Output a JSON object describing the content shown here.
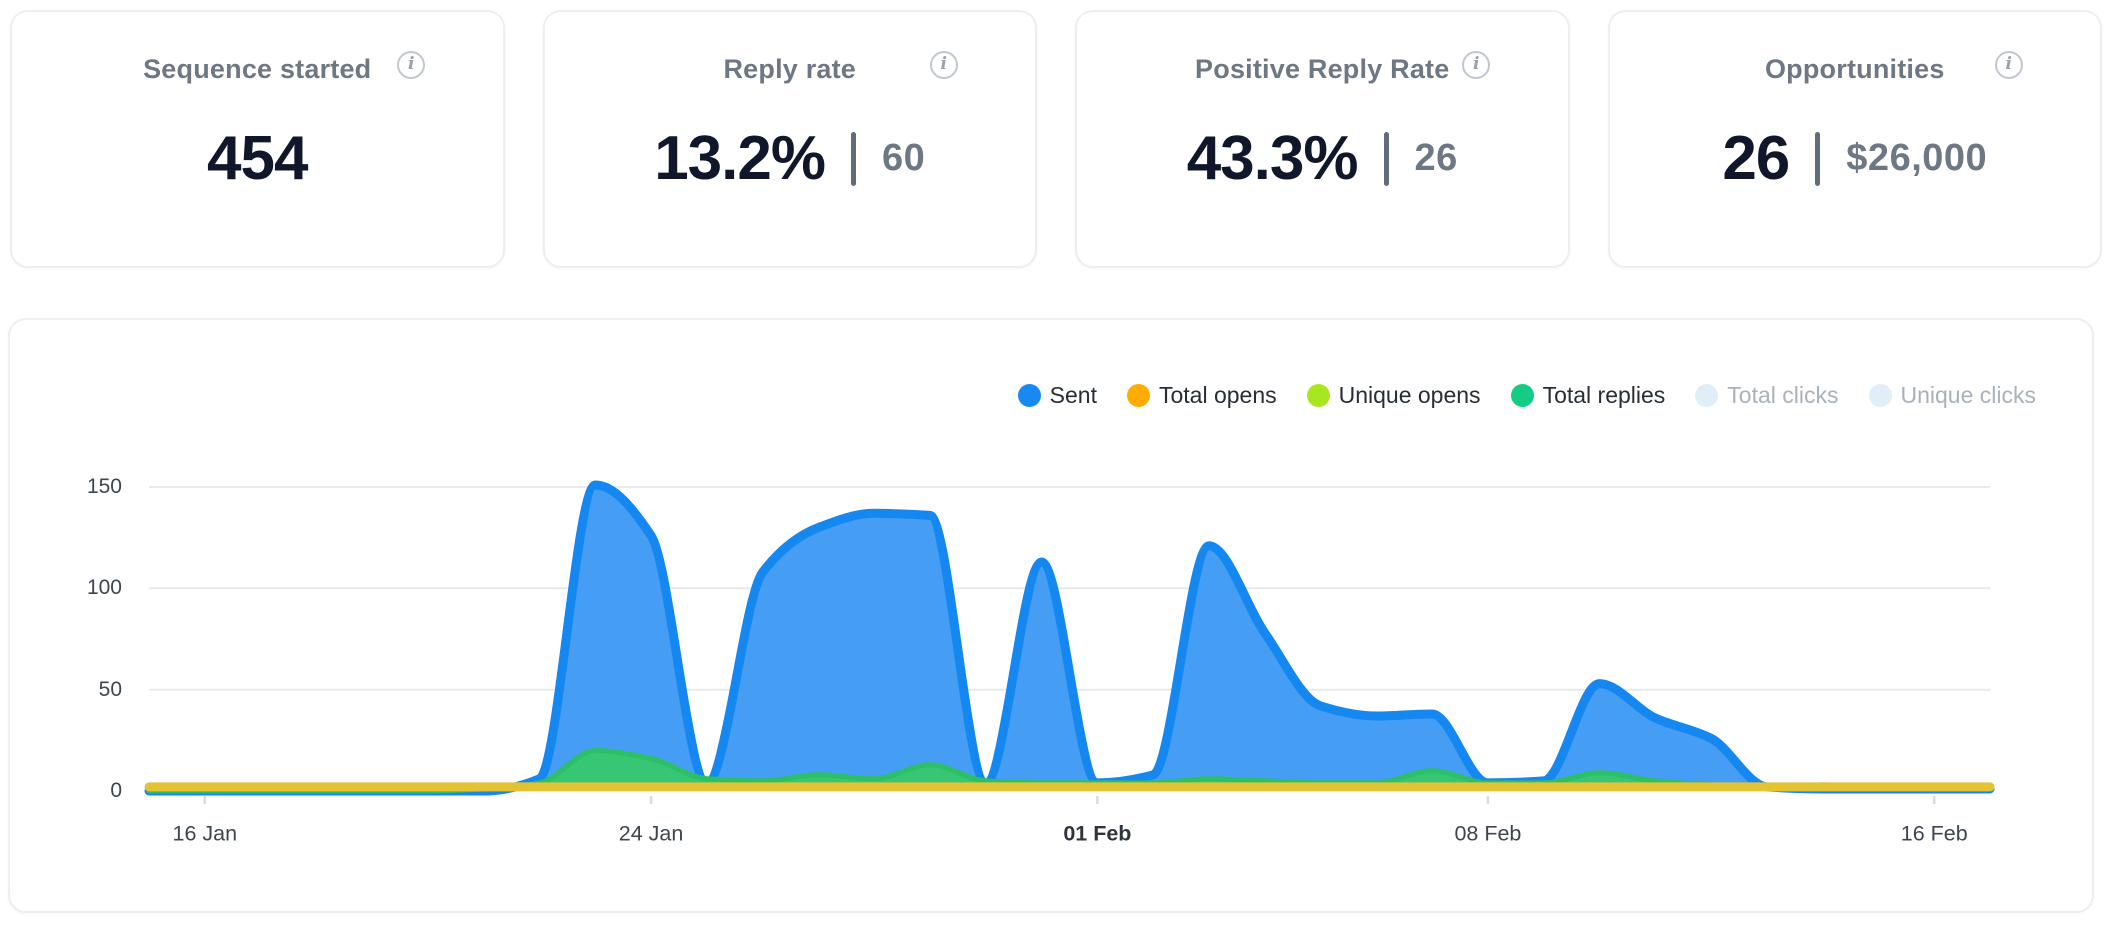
{
  "cards": [
    {
      "title": "Sequence started",
      "value": "454",
      "secondary": null
    },
    {
      "title": "Reply rate",
      "value": "13.2%",
      "secondary": "60"
    },
    {
      "title": "Positive Reply Rate",
      "value": "43.3%",
      "secondary": "26"
    },
    {
      "title": "Opportunities",
      "value": "26",
      "secondary": "$26,000"
    }
  ],
  "info_icon_glyph": "i",
  "chart_data": {
    "type": "area",
    "title": "",
    "xlabel": "",
    "ylabel": "",
    "ylim": [
      0,
      150
    ],
    "yticks": [
      0,
      50,
      100,
      150
    ],
    "grid": "horizontal",
    "legend_position": "top-right",
    "x": [
      "15 Jan",
      "16 Jan",
      "17 Jan",
      "18 Jan",
      "19 Jan",
      "20 Jan",
      "21 Jan",
      "22 Jan",
      "23 Jan",
      "24 Jan",
      "25 Jan",
      "26 Jan",
      "27 Jan",
      "28 Jan",
      "29 Jan",
      "30 Jan",
      "31 Jan",
      "01 Feb",
      "02 Feb",
      "03 Feb",
      "04 Feb",
      "05 Feb",
      "06 Feb",
      "07 Feb",
      "08 Feb",
      "09 Feb",
      "10 Feb",
      "11 Feb",
      "12 Feb",
      "13 Feb",
      "14 Feb",
      "15 Feb",
      "16 Feb",
      "17 Feb"
    ],
    "xticks": [
      {
        "label": "16 Jan",
        "index": 1,
        "bold": false
      },
      {
        "label": "24 Jan",
        "index": 9,
        "bold": false
      },
      {
        "label": "01 Feb",
        "index": 17,
        "bold": true
      },
      {
        "label": "08 Feb",
        "index": 24,
        "bold": false
      },
      {
        "label": "16 Feb",
        "index": 32,
        "bold": false
      }
    ],
    "series": [
      {
        "name": "Sent",
        "enabled": true,
        "kind": "area",
        "z": 1,
        "color": "#1789f2",
        "fill": "#459ef4",
        "line_color": "#1487f0",
        "stroke_width": 9,
        "values": [
          0,
          0,
          0,
          0,
          0,
          0,
          0,
          6,
          151,
          126,
          4,
          108,
          130,
          137,
          136,
          4,
          113,
          4,
          8,
          121,
          78,
          42,
          37,
          38,
          4,
          5,
          53,
          36,
          26,
          2,
          1,
          1,
          1,
          1
        ]
      },
      {
        "name": "Total opens",
        "enabled": true,
        "kind": "line",
        "z": 4,
        "color": "#ffab00",
        "line_color": "#e3c334",
        "stroke_width": 9,
        "values": [
          2,
          2,
          2,
          2,
          2,
          2,
          2,
          2,
          2,
          2,
          2,
          2,
          2,
          2,
          2,
          2,
          2,
          2,
          2,
          2,
          2,
          2,
          2,
          2,
          2,
          2,
          2,
          2,
          2,
          2,
          2,
          2,
          2,
          2
        ]
      },
      {
        "name": "Unique opens",
        "enabled": true,
        "kind": "line",
        "z": 3,
        "color": "#a8e620",
        "line_color": "#a8e620",
        "stroke_width": 4,
        "values": [
          1,
          1,
          1,
          1,
          1,
          1,
          1,
          1,
          1,
          1,
          1,
          1,
          1,
          1,
          1,
          1,
          1,
          1,
          1,
          1,
          1,
          1,
          1,
          1,
          1,
          1,
          1,
          1,
          1,
          1,
          1,
          1,
          1,
          1
        ]
      },
      {
        "name": "Total replies",
        "enabled": true,
        "kind": "area",
        "z": 2,
        "color": "#15cc84",
        "fill": "#36c674",
        "line_color": "#2bbf66",
        "stroke_width": 5,
        "values": [
          0,
          0,
          0,
          0,
          0,
          0,
          1,
          4,
          20,
          16,
          6,
          5,
          8,
          6,
          13,
          5,
          4,
          4,
          4,
          6,
          5,
          4,
          4,
          10,
          4,
          4,
          9,
          5,
          3,
          2,
          3,
          2,
          2,
          2
        ]
      },
      {
        "name": "Total clicks",
        "enabled": false,
        "kind": "line",
        "z": 5,
        "color": "#e0eef7",
        "line_color": "#e0eef7",
        "stroke_width": 4,
        "values": []
      },
      {
        "name": "Unique clicks",
        "enabled": false,
        "kind": "line",
        "z": 6,
        "color": "#e0eef7",
        "line_color": "#e0eef7",
        "stroke_width": 4,
        "values": []
      }
    ]
  },
  "chart_style": {
    "gridline_color": "#e7e9ed",
    "tick_color": "#d8dbe0",
    "axis_label_color": "#3e4650"
  }
}
